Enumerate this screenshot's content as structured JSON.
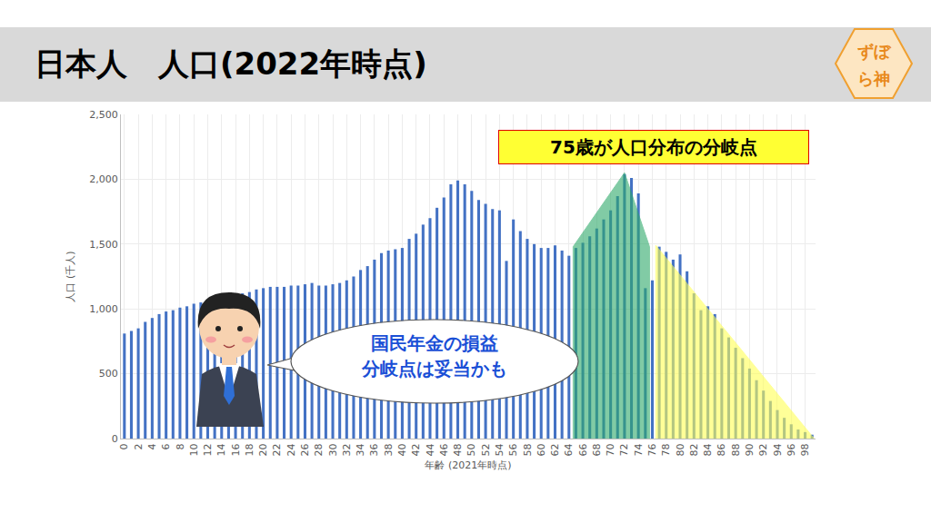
{
  "header": {
    "title": "日本人　人口(2022年時点)",
    "logo": [
      "ずぼ",
      "ら神"
    ]
  },
  "chart_data": {
    "type": "bar",
    "x": [
      0,
      1,
      2,
      3,
      4,
      5,
      6,
      7,
      8,
      9,
      10,
      11,
      12,
      13,
      14,
      15,
      16,
      17,
      18,
      19,
      20,
      21,
      22,
      23,
      24,
      25,
      26,
      27,
      28,
      29,
      30,
      31,
      32,
      33,
      34,
      35,
      36,
      37,
      38,
      39,
      40,
      41,
      42,
      43,
      44,
      45,
      46,
      47,
      48,
      49,
      50,
      51,
      52,
      53,
      54,
      55,
      56,
      57,
      58,
      59,
      60,
      61,
      62,
      63,
      64,
      65,
      66,
      67,
      68,
      69,
      70,
      71,
      72,
      73,
      74,
      75,
      76,
      77,
      78,
      79,
      80,
      81,
      82,
      83,
      84,
      85,
      86,
      87,
      88,
      89,
      90,
      91,
      92,
      93,
      94,
      95,
      96,
      97,
      98,
      99
    ],
    "values": [
      810,
      830,
      850,
      900,
      930,
      960,
      980,
      990,
      1010,
      1020,
      1040,
      1050,
      1060,
      1070,
      1080,
      1090,
      1100,
      1120,
      1130,
      1150,
      1160,
      1170,
      1170,
      1170,
      1180,
      1180,
      1190,
      1200,
      1180,
      1180,
      1190,
      1200,
      1220,
      1250,
      1300,
      1330,
      1380,
      1430,
      1450,
      1460,
      1470,
      1540,
      1580,
      1650,
      1700,
      1780,
      1860,
      1960,
      1990,
      1960,
      1910,
      1840,
      1810,
      1770,
      1760,
      1370,
      1690,
      1600,
      1540,
      1500,
      1470,
      1470,
      1490,
      1450,
      1410,
      1470,
      1510,
      1560,
      1620,
      1690,
      1760,
      1870,
      2040,
      2010,
      1890,
      1160,
      1220,
      1480,
      1440,
      1380,
      1420,
      1290,
      1120,
      990,
      1020,
      960,
      850,
      780,
      700,
      620,
      540,
      450,
      370,
      290,
      220,
      160,
      110,
      70,
      50,
      30
    ],
    "color": "#4472c4",
    "xlabel": "年齢 (2021年時点)",
    "ylabel": "人口 (千人)",
    "xlim": [
      -0.5,
      99.5
    ],
    "xticks": [
      0,
      2,
      4,
      6,
      8,
      10,
      12,
      14,
      16,
      18,
      20,
      22,
      24,
      26,
      28,
      30,
      32,
      34,
      36,
      38,
      40,
      42,
      44,
      46,
      48,
      50,
      52,
      54,
      56,
      58,
      60,
      62,
      64,
      66,
      68,
      70,
      72,
      74,
      76,
      78,
      80,
      82,
      84,
      86,
      88,
      90,
      92,
      94,
      96,
      98
    ],
    "ylim": [
      0,
      2500
    ],
    "yticks": [
      0,
      500,
      {
        "value": 1000,
        "label": "1,000"
      },
      {
        "value": 1500,
        "label": "1,500"
      },
      {
        "value": 2000,
        "label": "2,000"
      },
      {
        "value": 2500,
        "label": "2,500"
      }
    ],
    "grid": true,
    "highlights": [
      {
        "color": "#2eaa6a",
        "points": [
          [
            64.6,
            0
          ],
          [
            64.6,
            1480
          ],
          [
            72,
            2050
          ],
          [
            75.6,
            1480
          ],
          [
            75.6,
            0
          ]
        ]
      },
      {
        "color": "#ffff55",
        "points": [
          [
            76.5,
            1490
          ],
          [
            99.3,
            0
          ],
          [
            76.5,
            0
          ]
        ]
      }
    ],
    "annotations": [
      {
        "text": "75歳が人口分布の分岐点"
      },
      {
        "text": [
          "国民年金の損益",
          "分岐点は妥当かも"
        ]
      }
    ]
  }
}
